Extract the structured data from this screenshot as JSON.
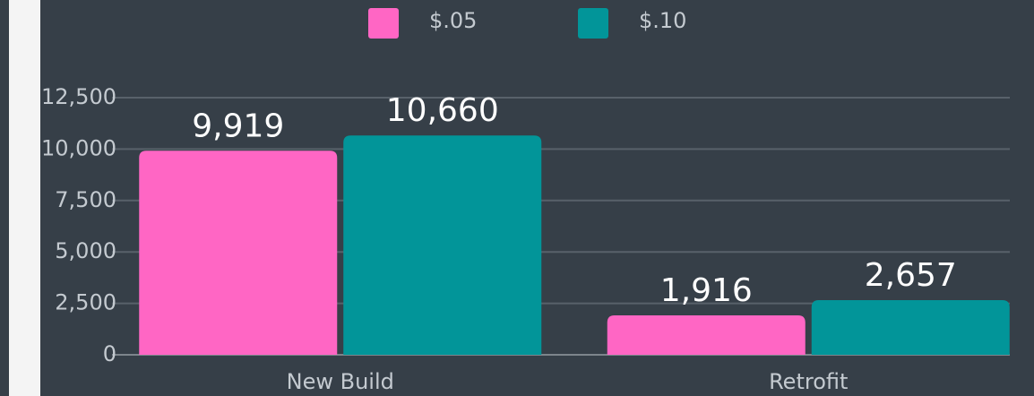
{
  "chart_data": {
    "type": "bar",
    "categories": [
      "New Build",
      "Retrofit"
    ],
    "series": [
      {
        "name": "$.05",
        "color": "#ff66c4",
        "values": [
          9919,
          1916
        ],
        "value_labels": [
          "9,919",
          "1,916"
        ]
      },
      {
        "name": "$.10",
        "color": "#029599",
        "values": [
          10660,
          2657
        ],
        "value_labels": [
          "10,660",
          "2,657"
        ]
      }
    ],
    "ylim": [
      0,
      12500
    ],
    "yticks": [
      0,
      {
        "value": 2500,
        "label": "2,500"
      },
      {
        "value": 5000,
        "label": "5,000"
      },
      {
        "value": 7500,
        "label": "7,500"
      },
      {
        "value": 10000,
        "label": "10,000"
      },
      {
        "value": 12500,
        "label": "12,500"
      }
    ],
    "grid": true
  }
}
